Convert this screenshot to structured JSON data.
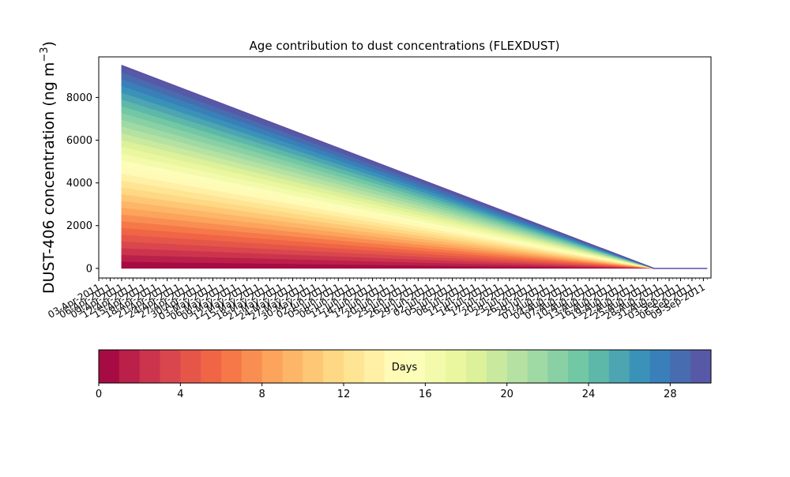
{
  "chart_data": {
    "type": "area",
    "title": "Age contribution to dust concentrations (FLEXDUST)",
    "ylabel": "DUST-406 concentration (ng m",
    "ylabel_sup": "−3",
    "ylabel_close": ")",
    "xlabel": "",
    "grid": false,
    "stacked": true,
    "ylim": [
      -450,
      9900
    ],
    "yticks": [
      0,
      2000,
      4000,
      6000,
      8000
    ],
    "xlim": [
      "2011-04-03",
      "2011-09-11"
    ],
    "xtick_labels": [
      "03-Apr-2011",
      "06-Apr-2011",
      "09-Apr-2011",
      "12-Apr-2011",
      "15-Apr-2011",
      "18-Apr-2011",
      "21-Apr-2011",
      "24-Apr-2011",
      "27-Apr-2011",
      "30-Apr-2011",
      "03-May-2011",
      "06-May-2011",
      "09-May-2011",
      "12-May-2011",
      "15-May-2011",
      "18-May-2011",
      "21-May-2011",
      "24-May-2011",
      "27-May-2011",
      "30-May-2011",
      "02-Jun-2011",
      "05-Jun-2011",
      "08-Jun-2011",
      "11-Jun-2011",
      "14-Jun-2011",
      "17-Jun-2011",
      "20-Jun-2011",
      "23-Jun-2011",
      "26-Jun-2011",
      "29-Jun-2011",
      "02-Jul-2011",
      "05-Jul-2011",
      "08-Jul-2011",
      "11-Jul-2011",
      "14-Jul-2011",
      "17-Jul-2011",
      "20-Jul-2011",
      "23-Jul-2011",
      "26-Jul-2011",
      "29-Jul-2011",
      "01-Aug-2011",
      "04-Aug-2011",
      "07-Aug-2011",
      "10-Aug-2011",
      "13-Aug-2011",
      "16-Aug-2011",
      "19-Aug-2011",
      "22-Aug-2011",
      "25-Aug-2011",
      "28-Aug-2011",
      "31-Aug-2011",
      "03-Sep-2011",
      "06-Sep-2011",
      "09-Sep-2011"
    ],
    "x": [
      "2011-04-09",
      "2011-08-27",
      "2011-09-10"
    ],
    "series_total": [
      9500,
      0,
      0
    ],
    "series_count": 30,
    "colorbar": {
      "label": "Days",
      "min": 0,
      "max": 30,
      "ticks": [
        0,
        4,
        8,
        12,
        16,
        20,
        24,
        28
      ],
      "colormap": "Spectral"
    }
  }
}
